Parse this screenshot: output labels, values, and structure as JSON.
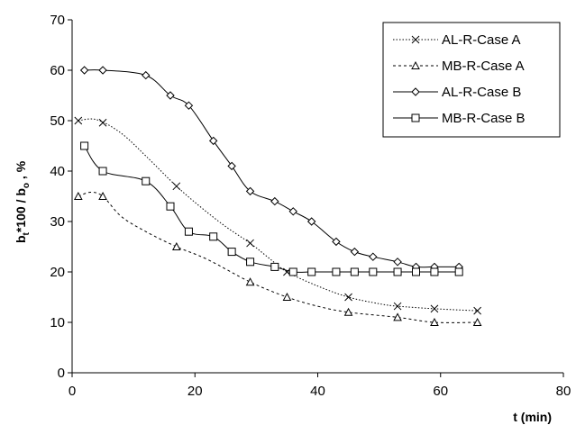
{
  "chart_data": {
    "type": "line",
    "xlabel": "t (min)",
    "ylabel_parts": [
      "b",
      "t",
      "*100 / b",
      "o",
      " , %"
    ],
    "xlim": [
      0,
      80
    ],
    "ylim": [
      0,
      70
    ],
    "x_ticks": [
      "0",
      "20",
      "40",
      "60",
      "80"
    ],
    "y_ticks": [
      "0",
      "10",
      "20",
      "30",
      "40",
      "50",
      "60",
      "70"
    ],
    "grid": false,
    "legend_position": "top-right",
    "series": [
      {
        "name": "AL-R-Case A",
        "marker": "x",
        "dash": "dotted",
        "points": [
          [
            1,
            50
          ],
          [
            5,
            49.6
          ],
          [
            17,
            37
          ],
          [
            29,
            25.7
          ],
          [
            35,
            20
          ],
          [
            45,
            15
          ],
          [
            53,
            13.2
          ],
          [
            59,
            12.7
          ],
          [
            66,
            12.3
          ]
        ],
        "curve_x": [
          1,
          4,
          8,
          12,
          17,
          21,
          25,
          29,
          32,
          35,
          40,
          45,
          50,
          53,
          59,
          66
        ],
        "curve_y": [
          50,
          50.2,
          47.5,
          43,
          37,
          32.8,
          29,
          25.7,
          22.8,
          20,
          17.2,
          15,
          13.7,
          13.2,
          12.7,
          12.3
        ]
      },
      {
        "name": "MB-R-Case A",
        "marker": "triangle",
        "dash": "dashed",
        "points": [
          [
            1,
            35
          ],
          [
            5,
            35
          ],
          [
            17,
            25
          ],
          [
            29,
            18
          ],
          [
            35,
            15
          ],
          [
            45,
            12
          ],
          [
            53,
            11
          ],
          [
            59,
            10
          ],
          [
            66,
            10
          ]
        ],
        "curve_x": [
          1,
          3,
          5,
          8,
          12,
          17,
          22,
          29,
          35,
          40,
          45,
          53,
          59,
          66
        ],
        "curve_y": [
          35,
          35.8,
          35,
          31,
          28,
          25,
          22.5,
          18,
          15,
          13.2,
          12,
          11,
          10,
          10
        ]
      },
      {
        "name": "AL-R-Case B",
        "marker": "diamond",
        "dash": "solid",
        "points": [
          [
            2,
            60
          ],
          [
            5,
            60
          ],
          [
            12,
            59
          ],
          [
            16,
            55
          ],
          [
            19,
            53
          ],
          [
            23,
            46
          ],
          [
            26,
            41
          ],
          [
            29,
            36
          ],
          [
            33,
            34
          ],
          [
            36,
            32
          ],
          [
            39,
            30
          ],
          [
            43,
            26
          ],
          [
            46,
            24
          ],
          [
            49,
            23
          ],
          [
            53,
            22
          ],
          [
            56,
            21
          ],
          [
            59,
            21
          ],
          [
            63,
            21
          ]
        ],
        "curve_x": [
          2,
          5,
          12,
          16,
          19,
          23,
          26,
          29,
          33,
          36,
          39,
          43,
          46,
          49,
          53,
          56,
          59,
          63
        ],
        "curve_y": [
          60,
          60,
          59,
          55,
          53,
          46,
          41,
          36,
          34,
          32,
          30,
          26,
          24,
          23,
          22,
          21,
          21,
          21
        ]
      },
      {
        "name": "MB-R-Case B",
        "marker": "square",
        "dash": "solid",
        "points": [
          [
            2,
            45
          ],
          [
            5,
            40
          ],
          [
            12,
            38
          ],
          [
            16,
            33
          ],
          [
            19,
            28
          ],
          [
            23,
            27
          ],
          [
            26,
            24
          ],
          [
            29,
            22
          ],
          [
            33,
            21
          ],
          [
            36,
            20
          ],
          [
            39,
            20
          ],
          [
            43,
            20
          ],
          [
            46,
            20
          ],
          [
            49,
            20
          ],
          [
            53,
            20
          ],
          [
            56,
            20
          ],
          [
            59,
            20
          ],
          [
            63,
            20
          ]
        ],
        "curve_x": [
          2,
          5,
          12,
          16,
          19,
          23,
          26,
          29,
          33,
          36,
          39,
          43,
          46,
          49,
          53,
          56,
          59,
          63
        ],
        "curve_y": [
          45,
          40,
          38,
          33,
          28,
          27,
          24,
          22,
          21,
          20,
          20,
          20,
          20,
          20,
          20,
          20,
          20,
          20
        ]
      }
    ]
  }
}
